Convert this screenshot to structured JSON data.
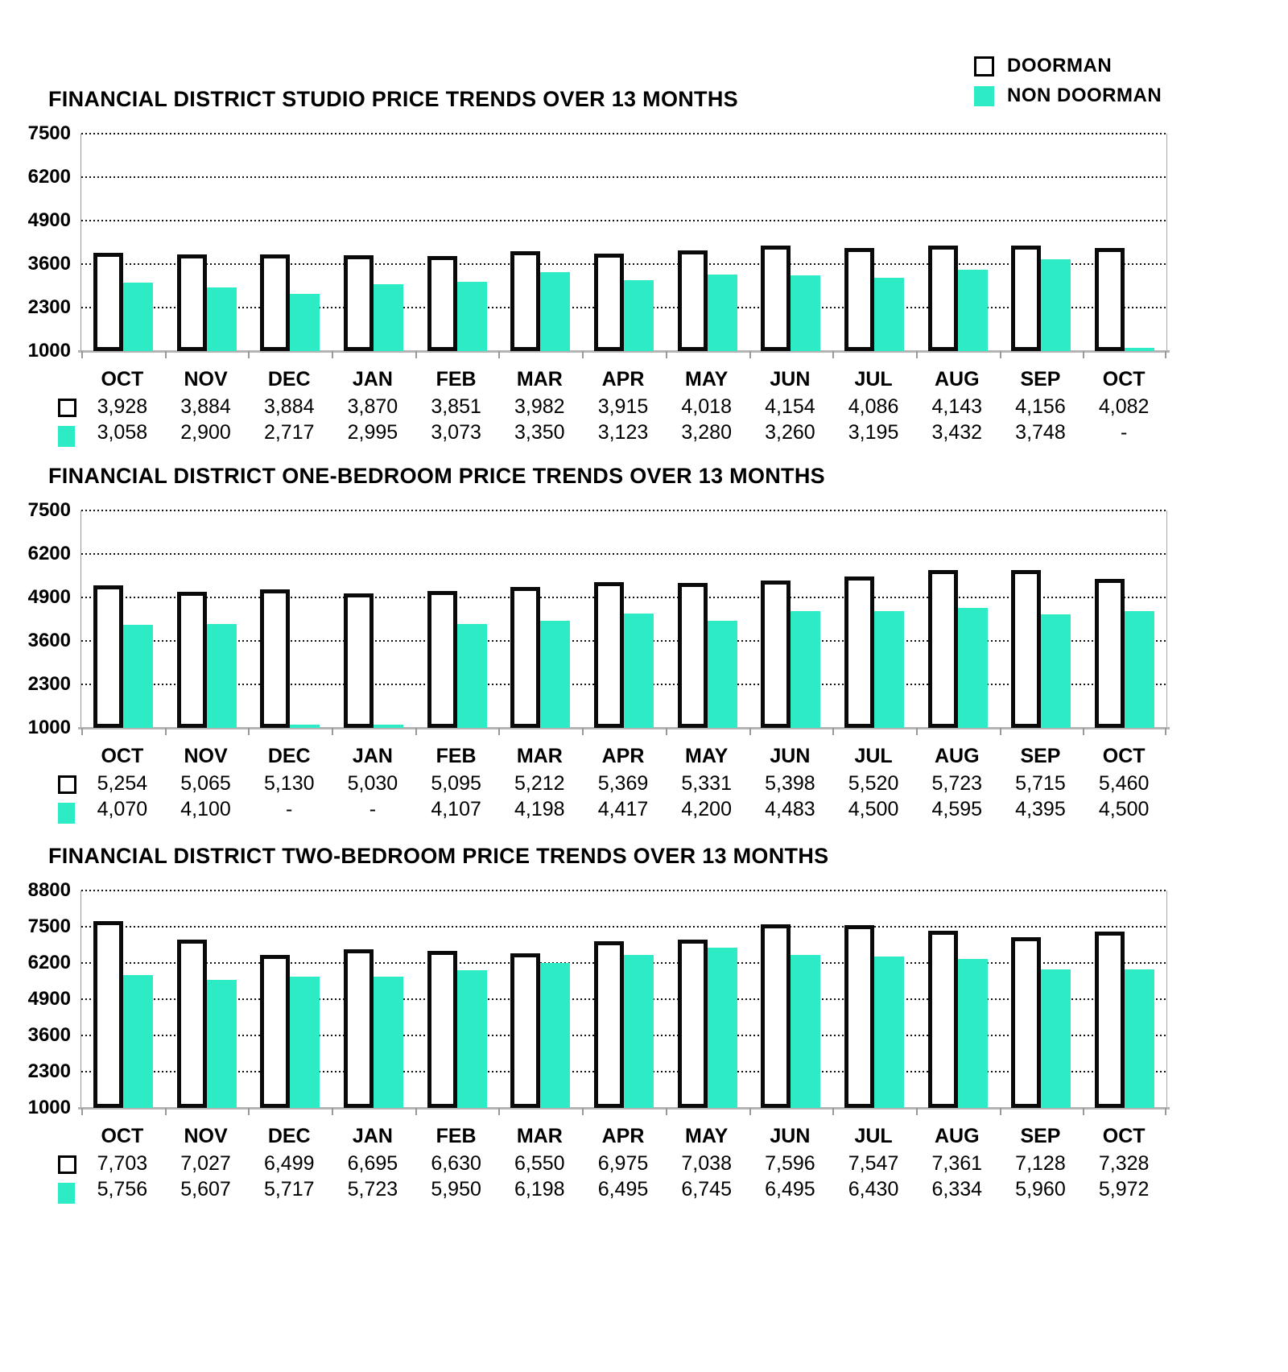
{
  "legend": {
    "items": [
      {
        "label": "DOORMAN",
        "key": "doorman",
        "swatch_fill": "#ffffff",
        "swatch_border": "#000000"
      },
      {
        "label": "NON DOORMAN",
        "key": "non_doorman",
        "swatch_fill": "#2DECC5"
      }
    ],
    "position": "top-right"
  },
  "colors": {
    "doorman_fill": "#ffffff",
    "doorman_border": "#000000",
    "non_doorman_fill": "#2DECC5",
    "baseline": "#b3b3b3",
    "grid": "#111111"
  },
  "missing_value_label": "-",
  "chart_data": [
    {
      "type": "bar",
      "title": "FINANCIAL DISTRICT STUDIO PRICE TRENDS OVER 13 MONTHS",
      "categories": [
        "OCT",
        "NOV",
        "DEC",
        "JAN",
        "FEB",
        "MAR",
        "APR",
        "MAY",
        "JUN",
        "JUL",
        "AUG",
        "SEP",
        "OCT"
      ],
      "series": [
        {
          "name": "DOORMAN",
          "values": [
            3928,
            3884,
            3884,
            3870,
            3851,
            3982,
            3915,
            4018,
            4154,
            4086,
            4143,
            4156,
            4082
          ]
        },
        {
          "name": "NON DOORMAN",
          "values": [
            3058,
            2900,
            2717,
            2995,
            3073,
            3350,
            3123,
            3280,
            3260,
            3195,
            3432,
            3748,
            null
          ]
        }
      ],
      "ylim": [
        1000,
        7500
      ],
      "y_ticks": [
        7500,
        6200,
        4900,
        3600,
        2300,
        1000
      ],
      "grid": "dotted-horizontal",
      "legend_position": "top-right"
    },
    {
      "type": "bar",
      "title": "FINANCIAL DISTRICT ONE-BEDROOM PRICE TRENDS OVER 13 MONTHS",
      "categories": [
        "OCT",
        "NOV",
        "DEC",
        "JAN",
        "FEB",
        "MAR",
        "APR",
        "MAY",
        "JUN",
        "JUL",
        "AUG",
        "SEP",
        "OCT"
      ],
      "series": [
        {
          "name": "DOORMAN",
          "values": [
            5254,
            5065,
            5130,
            5030,
            5095,
            5212,
            5369,
            5331,
            5398,
            5520,
            5723,
            5715,
            5460
          ]
        },
        {
          "name": "NON DOORMAN",
          "values": [
            4070,
            4100,
            null,
            null,
            4107,
            4198,
            4417,
            4200,
            4483,
            4500,
            4595,
            4395,
            4500
          ]
        }
      ],
      "ylim": [
        1000,
        7500
      ],
      "y_ticks": [
        7500,
        6200,
        4900,
        3600,
        2300,
        1000
      ],
      "grid": "dotted-horizontal",
      "legend_position": "none"
    },
    {
      "type": "bar",
      "title": "FINANCIAL DISTRICT TWO-BEDROOM PRICE TRENDS OVER 13 MONTHS",
      "categories": [
        "OCT",
        "NOV",
        "DEC",
        "JAN",
        "FEB",
        "MAR",
        "APR",
        "MAY",
        "JUN",
        "JUL",
        "AUG",
        "SEP",
        "OCT"
      ],
      "series": [
        {
          "name": "DOORMAN",
          "values": [
            7703,
            7027,
            6499,
            6695,
            6630,
            6550,
            6975,
            7038,
            7596,
            7547,
            7361,
            7128,
            7328
          ]
        },
        {
          "name": "NON DOORMAN",
          "values": [
            5756,
            5607,
            5717,
            5723,
            5950,
            6198,
            6495,
            6745,
            6495,
            6430,
            6334,
            5960,
            5972
          ]
        }
      ],
      "ylim": [
        1000,
        8800
      ],
      "y_ticks": [
        8800,
        7500,
        6200,
        4900,
        3600,
        2300,
        1000
      ],
      "grid": "dotted-horizontal",
      "legend_position": "none"
    }
  ]
}
